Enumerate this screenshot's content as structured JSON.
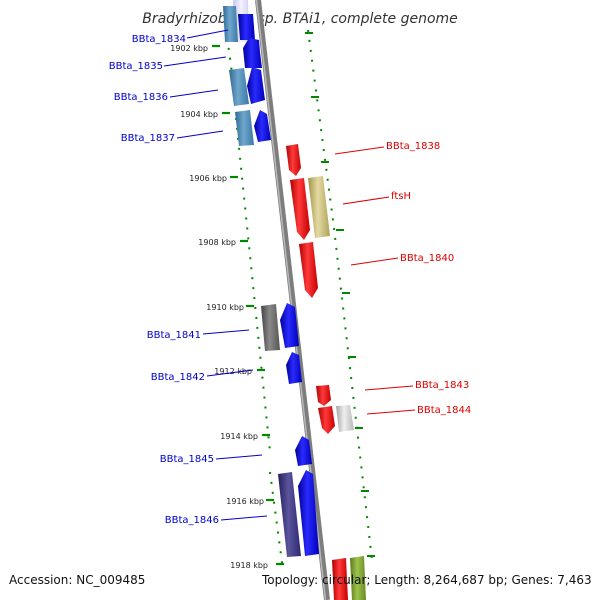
{
  "title": "Bradyrhizobium sp. BTAi1, complete genome",
  "footer": {
    "accession": "Accession: NC_009485",
    "stats": "Topology: circular; Length: 8,264,687 bp; Genes: 7,463"
  },
  "colors": {
    "backbone": "#8c8c8c",
    "tick": "#008800",
    "forward_label": "#0000cc",
    "reverse_label": "#dd0000",
    "forward_gene": "#0000ff",
    "reverse_gene": "#ff0000"
  },
  "position_markers": [
    "1902 kbp",
    "1904 kbp",
    "1906 kbp",
    "1908 kbp",
    "1910 kbp",
    "1912 kbp",
    "1914 kbp",
    "1916 kbp",
    "1918 kbp"
  ],
  "gene_labels": {
    "forward": [
      "BBta_1834",
      "BBta_1835",
      "BBta_1836",
      "BBta_1837",
      "BBta_1841",
      "BBta_1842",
      "BBta_1845",
      "BBta_1846"
    ],
    "reverse": [
      "BBta_1838",
      "ftsH",
      "BBta_1840",
      "BBta_1843",
      "BBta_1844"
    ]
  }
}
